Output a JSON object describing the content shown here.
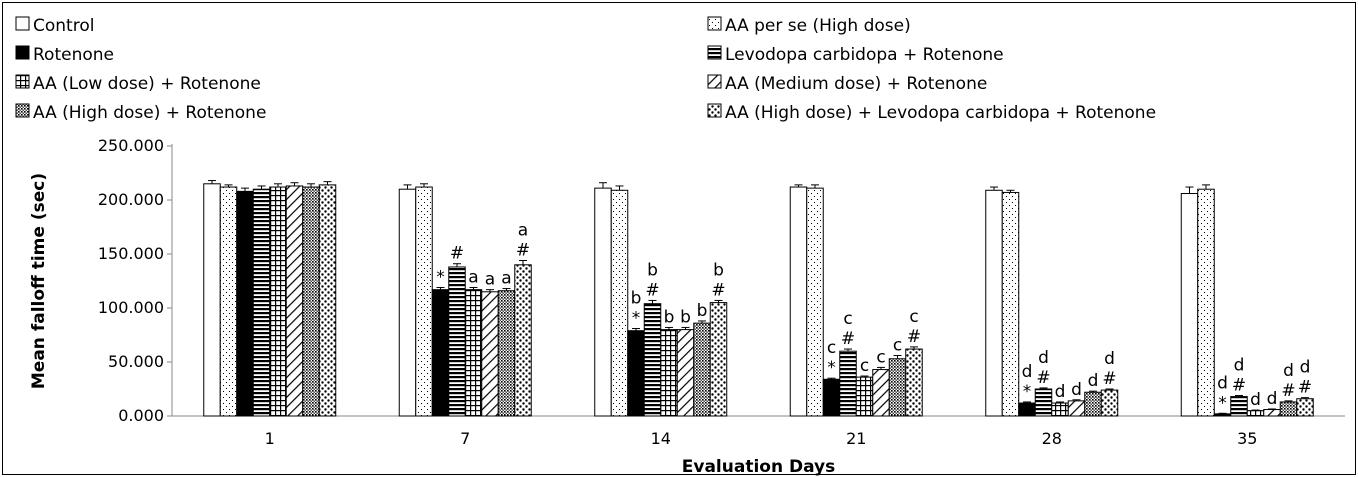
{
  "chart_data": {
    "type": "bar",
    "title": "",
    "xlabel": "Evaluation Days",
    "ylabel": "Mean falloff time (sec)",
    "ylim": [
      0,
      250
    ],
    "yticks": [
      "0.000",
      "50.000",
      "100.000",
      "150.000",
      "200.000",
      "250.000"
    ],
    "categories": [
      "1",
      "7",
      "14",
      "21",
      "28",
      "35"
    ],
    "legend_position": "top",
    "series": [
      {
        "name": "Control",
        "pattern": "white",
        "values": [
          215,
          210,
          211,
          212,
          209,
          206
        ],
        "errors": [
          3,
          4,
          5,
          2,
          3,
          6
        ],
        "annotations": [
          "",
          "",
          "",
          "",
          "",
          ""
        ]
      },
      {
        "name": "AA per se (High dose)",
        "pattern": "dots-sparse",
        "values": [
          212,
          212,
          209,
          211,
          207,
          210
        ],
        "errors": [
          2,
          3,
          4,
          3,
          2,
          4
        ],
        "annotations": [
          "",
          "",
          "",
          "",
          "",
          ""
        ]
      },
      {
        "name": "Rotenone",
        "pattern": "black",
        "values": [
          208,
          117,
          79,
          34,
          12,
          2
        ],
        "errors": [
          3,
          2,
          2,
          1,
          1,
          0.5
        ],
        "annotations": [
          "",
          "*",
          "b\n*",
          "c\n*",
          "d\n*",
          "d\n*"
        ]
      },
      {
        "name": "Levodopa carbidopa + Rotenone",
        "pattern": "hlines",
        "values": [
          210,
          138,
          104,
          60,
          25,
          18
        ],
        "errors": [
          3,
          3,
          3,
          2,
          1,
          1
        ],
        "annotations": [
          "",
          "#",
          "b\n#",
          "c\n#",
          "d\n#",
          "d\n#"
        ]
      },
      {
        "name": "AA (Low dose) + Rotenone",
        "pattern": "grid",
        "values": [
          212,
          117,
          80,
          36,
          12,
          5
        ],
        "errors": [
          3,
          2,
          2,
          1,
          1,
          0.5
        ],
        "annotations": [
          "",
          "a",
          "b",
          "c",
          "d",
          "d"
        ]
      },
      {
        "name": "AA (Medium dose) + Rotenone",
        "pattern": "diagonal",
        "values": [
          213,
          115,
          80,
          43,
          14,
          6
        ],
        "errors": [
          3,
          2,
          2,
          2,
          1,
          0.5
        ],
        "annotations": [
          "",
          "a",
          "b",
          "c",
          "d",
          "d"
        ]
      },
      {
        "name": "AA (High dose) + Rotenone",
        "pattern": "dots-dense",
        "values": [
          212,
          116,
          86,
          53,
          22,
          13
        ],
        "errors": [
          3,
          2,
          2,
          3,
          1,
          1
        ],
        "annotations": [
          "",
          "a",
          "b",
          "c",
          "d",
          "d\n#"
        ]
      },
      {
        "name": "AA (High dose) + Levodopa carbidopa + Rotenone",
        "pattern": "dots-big",
        "values": [
          214,
          140,
          105,
          62,
          24,
          16
        ],
        "errors": [
          3,
          4,
          2,
          2,
          1,
          1
        ],
        "annotations": [
          "",
          "a\n#",
          "b\n#",
          "c\n#",
          "d\n#",
          "d\n#"
        ]
      }
    ]
  }
}
